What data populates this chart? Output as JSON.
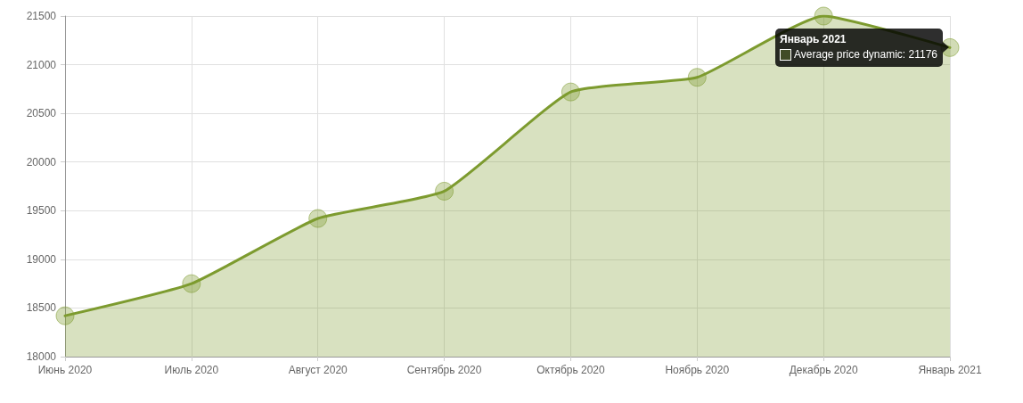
{
  "chart_data": {
    "type": "area",
    "categories": [
      "Июнь 2020",
      "Июль 2020",
      "Август 2020",
      "Сентябрь 2020",
      "Октябрь 2020",
      "Ноябрь 2020",
      "Декабрь 2020",
      "Январь 2021"
    ],
    "values": [
      18420,
      18750,
      19420,
      19700,
      20720,
      20870,
      21500,
      21176
    ],
    "color": "#7d9b2f",
    "ylim": [
      18000,
      21500
    ],
    "yticks": [
      18000,
      18500,
      19000,
      19500,
      20000,
      20500,
      21000,
      21500
    ],
    "grid": true,
    "marker": "circle",
    "annotations": [
      "Январь 2021",
      {
        "text": "Average price dynamic: 21176",
        "x": "Январь 2021",
        "y": 21176
      }
    ]
  }
}
